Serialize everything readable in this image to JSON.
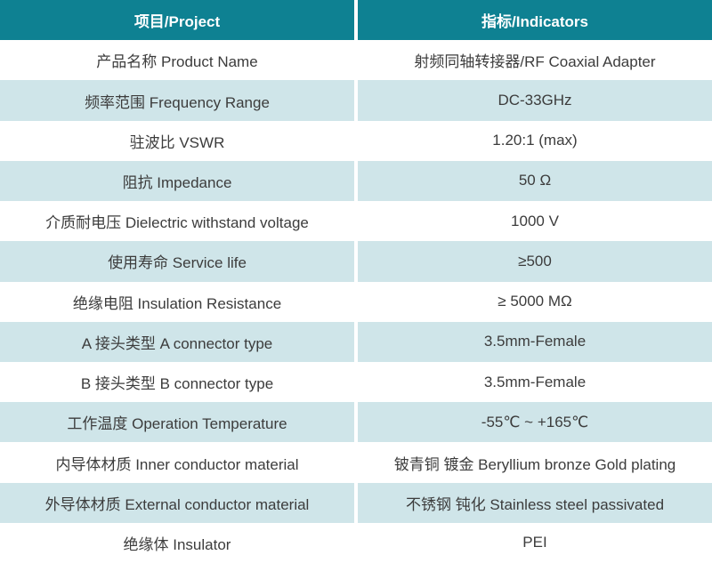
{
  "table": {
    "header": {
      "project": "项目/Project",
      "indicators": "指标/Indicators"
    },
    "rows": [
      {
        "label": "产品名称 Product Name",
        "value": "射频同轴转接器/RF Coaxial Adapter"
      },
      {
        "label": "频率范围 Frequency Range",
        "value": "DC-33GHz"
      },
      {
        "label": "驻波比 VSWR",
        "value": "1.20:1 (max)"
      },
      {
        "label": "阻抗 Impedance",
        "value": "50 Ω"
      },
      {
        "label": "介质耐电压 Dielectric withstand voltage",
        "value": "1000 V"
      },
      {
        "label": "使用寿命 Service life",
        "value": "≥500"
      },
      {
        "label": "绝缘电阻 Insulation Resistance",
        "value": "≥ 5000 MΩ"
      },
      {
        "label": "A 接头类型  A connector type",
        "value": "3.5mm-Female"
      },
      {
        "label": "B 接头类型  B connector type",
        "value": "3.5mm-Female"
      },
      {
        "label": "工作温度 Operation Temperature",
        "value": "-55℃ ~ +165℃"
      },
      {
        "label": "内导体材质 Inner conductor material",
        "value": "铍青铜 镀金 Beryllium bronze Gold plating"
      },
      {
        "label": "外导体材质 External conductor material",
        "value": "不锈钢 钝化 Stainless steel passivated"
      },
      {
        "label": "绝缘体 Insulator",
        "value": "PEI"
      }
    ],
    "colors": {
      "header_bg": "#0e8192",
      "header_text": "#ffffff",
      "row_bg": "#ffffff",
      "row_alt_bg": "#cfe5e9",
      "body_text": "#3c3c3c",
      "divider": "#ffffff"
    }
  }
}
